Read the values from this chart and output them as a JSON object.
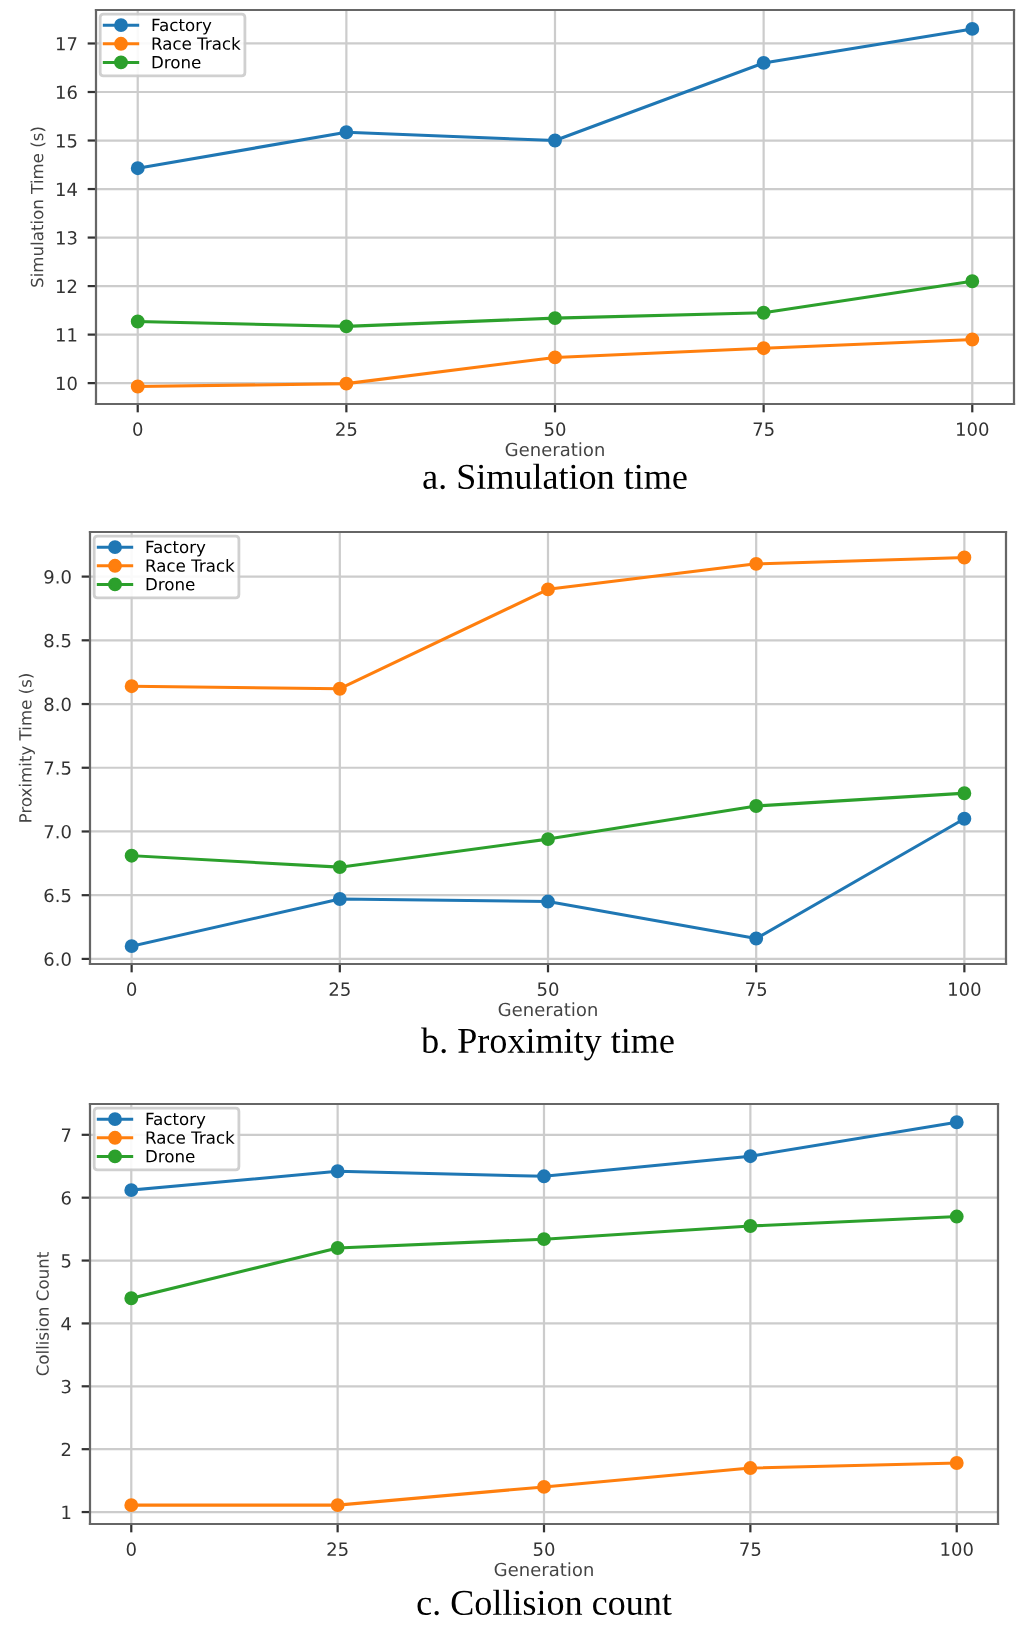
{
  "chart_data": [
    {
      "type": "line",
      "xlabel": "Generation",
      "ylabel": "Simulation Time (s)",
      "x": [
        0,
        25,
        50,
        75,
        100
      ],
      "xlim": [
        -5,
        105
      ],
      "xticks": [
        0,
        25,
        50,
        75,
        100
      ],
      "ylim": [
        9.57,
        17.69
      ],
      "yticks": [
        10,
        11,
        12,
        13,
        14,
        15,
        16,
        17
      ],
      "grid": true,
      "legend": "top left",
      "marker": "circle",
      "annotations": [
        "a. Simulation time"
      ],
      "series": [
        {
          "name": "Factory",
          "color": "#1f77b4",
          "values": [
            14.43,
            15.17,
            15.0,
            16.6,
            17.3
          ]
        },
        {
          "name": "Race Track",
          "color": "#ff7f0e",
          "values": [
            9.93,
            9.99,
            10.53,
            10.72,
            10.9
          ]
        },
        {
          "name": "Drone",
          "color": "#2ca02c",
          "values": [
            11.27,
            11.17,
            11.34,
            11.45,
            12.1
          ]
        }
      ]
    },
    {
      "type": "line",
      "xlabel": "Generation",
      "ylabel": "Proximity Time (s)",
      "x": [
        0,
        25,
        50,
        75,
        100
      ],
      "xlim": [
        -5,
        105
      ],
      "xticks": [
        0,
        25,
        50,
        75,
        100
      ],
      "ylim": [
        5.96,
        9.35
      ],
      "yticks": [
        {
          "value": 6,
          "label": "6.0"
        },
        6.5,
        {
          "value": 7,
          "label": "7.0"
        },
        7.5,
        {
          "value": 8,
          "label": "8.0"
        },
        8.5,
        {
          "value": 9,
          "label": "9.0"
        }
      ],
      "grid": true,
      "legend": "top left",
      "marker": "circle",
      "annotations": [
        "b. Proximity time"
      ],
      "series": [
        {
          "name": "Factory",
          "color": "#1f77b4",
          "values": [
            6.1,
            6.47,
            6.45,
            6.16,
            7.1
          ]
        },
        {
          "name": "Race Track",
          "color": "#ff7f0e",
          "values": [
            8.14,
            8.12,
            8.9,
            9.1,
            9.15
          ]
        },
        {
          "name": "Drone",
          "color": "#2ca02c",
          "values": [
            6.81,
            6.72,
            6.94,
            7.2,
            7.3
          ]
        }
      ]
    },
    {
      "type": "line",
      "xlabel": "Generation",
      "ylabel": "Collision Count",
      "x": [
        0,
        25,
        50,
        75,
        100
      ],
      "xlim": [
        -5,
        105
      ],
      "xticks": [
        0,
        25,
        50,
        75,
        100
      ],
      "ylim": [
        0.81,
        7.49
      ],
      "yticks": [
        1,
        2,
        3,
        4,
        5,
        6,
        7
      ],
      "grid": true,
      "legend": "top left",
      "marker": "circle",
      "annotations": [
        "c. Collision count"
      ],
      "series": [
        {
          "name": "Factory",
          "color": "#1f77b4",
          "values": [
            6.12,
            6.42,
            6.34,
            6.66,
            7.2
          ]
        },
        {
          "name": "Race Track",
          "color": "#ff7f0e",
          "values": [
            1.11,
            1.11,
            1.4,
            1.7,
            1.78
          ]
        },
        {
          "name": "Drone",
          "color": "#2ca02c",
          "values": [
            4.4,
            5.2,
            5.34,
            5.55,
            5.7
          ]
        }
      ]
    }
  ]
}
